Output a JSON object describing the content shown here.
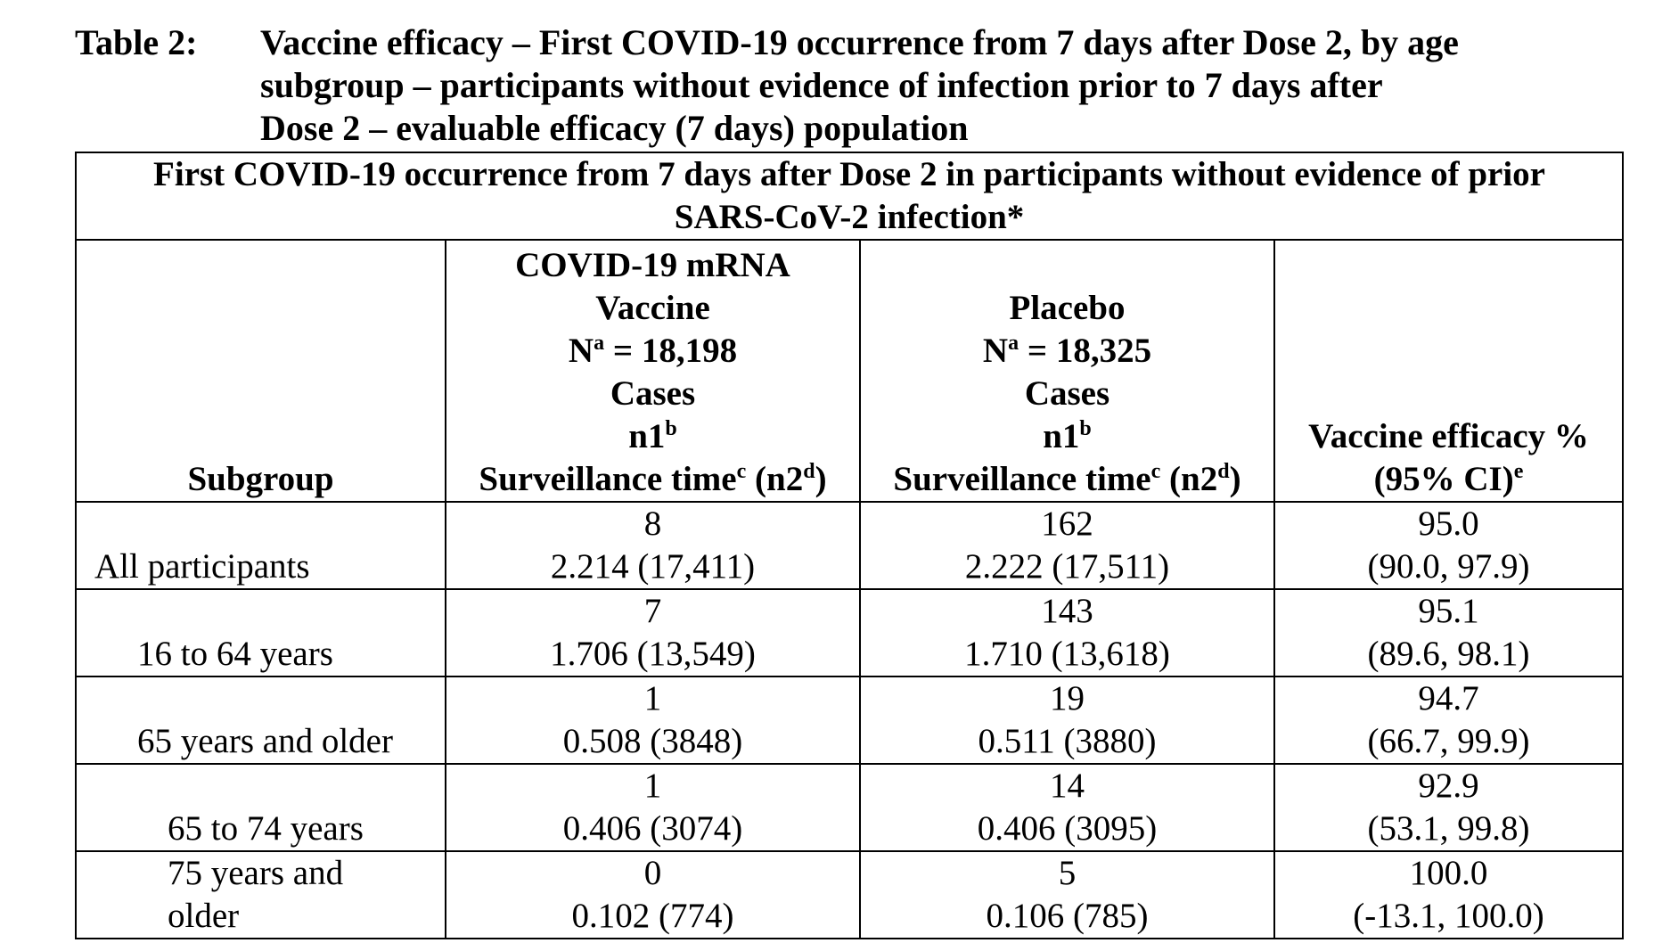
{
  "caption": {
    "label": "Table 2:",
    "lines": [
      "Vaccine efficacy – First COVID-19 occurrence from 7 days after Dose 2, by age",
      "subgroup – participants without evidence of infection prior to 7 days after",
      "Dose 2 – evaluable efficacy (7 days) population"
    ]
  },
  "table": {
    "banner_lines": [
      "First COVID-19 occurrence from 7 days after Dose 2 in participants without evidence of prior",
      "SARS-CoV-2 infection*"
    ],
    "headers": {
      "subgroup": "Subgroup",
      "vaccine": {
        "name1": "COVID-19 mRNA",
        "name2": "Vaccine",
        "n_prefix": "N",
        "n_sup": "a",
        "n_value": " = 18,198",
        "cases": "Cases",
        "n1": "n1",
        "n1_sup": "b",
        "surv": "Surveillance time",
        "surv_sup": "c",
        "surv_n2_open": " (n2",
        "surv_n2_sup": "d",
        "surv_n2_close": ")"
      },
      "placebo": {
        "name1": "Placebo",
        "n_prefix": "N",
        "n_sup": "a",
        "n_value": " = 18,325",
        "cases": "Cases",
        "n1": "n1",
        "n1_sup": "b",
        "surv": "Surveillance time",
        "surv_sup": "c",
        "surv_n2_open": " (n2",
        "surv_n2_sup": "d",
        "surv_n2_close": ")"
      },
      "efficacy": {
        "line1": "Vaccine efficacy %",
        "line2": "(95% CI)",
        "line2_sup": "e"
      }
    },
    "rows": [
      {
        "subgroup": "All participants",
        "vaccine_n1": "8",
        "vaccine_surv": "2.214 (17,411)",
        "placebo_n1": "162",
        "placebo_surv": "2.222 (17,511)",
        "ve": "95.0",
        "ci": "(90.0, 97.9)"
      },
      {
        "subgroup": "16 to 64 years",
        "vaccine_n1": "7",
        "vaccine_surv": "1.706 (13,549)",
        "placebo_n1": "143",
        "placebo_surv": "1.710 (13,618)",
        "ve": "95.1",
        "ci": "(89.6, 98.1)"
      },
      {
        "subgroup": "65 years and older",
        "vaccine_n1": "1",
        "vaccine_surv": "0.508 (3848)",
        "placebo_n1": "19",
        "placebo_surv": "0.511 (3880)",
        "ve": "94.7",
        "ci": "(66.7, 99.9)"
      },
      {
        "subgroup": "65 to 74 years",
        "vaccine_n1": "1",
        "vaccine_surv": "0.406 (3074)",
        "placebo_n1": "14",
        "placebo_surv": "0.406 (3095)",
        "ve": "92.9",
        "ci": "(53.1, 99.8)"
      },
      {
        "subgroup_line1": "75 years and",
        "subgroup_line2": "older",
        "vaccine_n1": "0",
        "vaccine_surv": "0.102 (774)",
        "placebo_n1": "5",
        "placebo_surv": "0.106 (785)",
        "ve": "100.0",
        "ci": "(-13.1, 100.0)"
      }
    ]
  }
}
